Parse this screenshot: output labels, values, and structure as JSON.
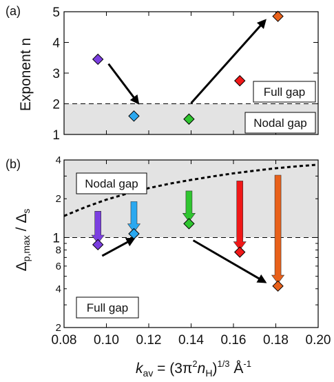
{
  "colors": {
    "violet": "#7b3fe0",
    "skyblue": "#2aa8f0",
    "green": "#2fc52f",
    "red": "#f01818",
    "orange": "#e8601a",
    "shade": "#e3e3e3"
  },
  "chart_data": [
    {
      "panel": "a",
      "type": "scatter",
      "panel_label": "(a)",
      "ylabel": "Exponent n",
      "xlim": [
        0.08,
        0.2
      ],
      "ylim": [
        1,
        5
      ],
      "yticks": [
        "1",
        "2",
        "3",
        "4",
        "5"
      ],
      "grid": false,
      "threshold": 2,
      "points": [
        {
          "x": 0.096,
          "y": 3.45,
          "color": "violet"
        },
        {
          "x": 0.113,
          "y": 1.6,
          "color": "skyblue"
        },
        {
          "x": 0.139,
          "y": 1.5,
          "color": "green"
        },
        {
          "x": 0.163,
          "y": 2.75,
          "color": "red"
        },
        {
          "x": 0.181,
          "y": 4.85,
          "color": "orange"
        }
      ],
      "arrows": [
        {
          "from": [
            0.101,
            3.3
          ],
          "to": [
            0.115,
            2.02
          ]
        },
        {
          "from": [
            0.14,
            2.02
          ],
          "to": [
            0.175,
            4.72
          ]
        }
      ],
      "annotations": {
        "upper": "Full gap",
        "lower": "Nodal gap"
      }
    },
    {
      "panel": "b",
      "type": "scatter",
      "panel_label": "(b)",
      "ylabel": "Δp,max / Δs",
      "yscale": "log",
      "xlim": [
        0.08,
        0.2
      ],
      "ylim": [
        0.2,
        4
      ],
      "major_ticks": [
        "1"
      ],
      "minor_ticks": [
        "2",
        "4",
        "8",
        "2",
        "4",
        "6",
        "8"
      ],
      "xticks": [
        "0.08",
        "0.10",
        "0.12",
        "0.14",
        "0.16",
        "0.18",
        "0.20"
      ],
      "xlabel": "kav = (3π2nH)1/3 Å-1",
      "grid": false,
      "threshold": 1,
      "points": [
        {
          "x": 0.096,
          "y": 0.88,
          "color": "violet"
        },
        {
          "x": 0.113,
          "y": 1.07,
          "color": "skyblue"
        },
        {
          "x": 0.139,
          "y": 1.28,
          "color": "green"
        },
        {
          "x": 0.163,
          "y": 0.77,
          "color": "red"
        },
        {
          "x": 0.181,
          "y": 0.42,
          "color": "orange"
        }
      ],
      "gap_arrows": [
        {
          "x": 0.096,
          "from": 1.6,
          "to": 0.9,
          "color": "violet"
        },
        {
          "x": 0.113,
          "from": 1.9,
          "to": 1.1,
          "color": "skyblue"
        },
        {
          "x": 0.139,
          "from": 2.3,
          "to": 1.33,
          "color": "green"
        },
        {
          "x": 0.163,
          "from": 2.75,
          "to": 0.8,
          "color": "red"
        },
        {
          "x": 0.181,
          "from": 3.05,
          "to": 0.44,
          "color": "orange"
        }
      ],
      "dashed_curve": [
        {
          "x": 0.08,
          "y": 1.47
        },
        {
          "x": 0.09,
          "y": 1.72
        },
        {
          "x": 0.1,
          "y": 1.97
        },
        {
          "x": 0.11,
          "y": 2.2
        },
        {
          "x": 0.12,
          "y": 2.42
        },
        {
          "x": 0.13,
          "y": 2.62
        },
        {
          "x": 0.14,
          "y": 2.8
        },
        {
          "x": 0.15,
          "y": 2.98
        },
        {
          "x": 0.16,
          "y": 3.15
        },
        {
          "x": 0.17,
          "y": 3.3
        },
        {
          "x": 0.18,
          "y": 3.45
        },
        {
          "x": 0.19,
          "y": 3.57
        },
        {
          "x": 0.2,
          "y": 3.68
        }
      ],
      "arrows": [
        {
          "from": [
            0.098,
            0.72
          ],
          "to": [
            0.113,
            0.98
          ]
        },
        {
          "from": [
            0.141,
            0.95
          ],
          "to": [
            0.175,
            0.45
          ]
        }
      ],
      "annotations": {
        "upper": "Nodal gap",
        "lower": "Full gap"
      }
    }
  ]
}
